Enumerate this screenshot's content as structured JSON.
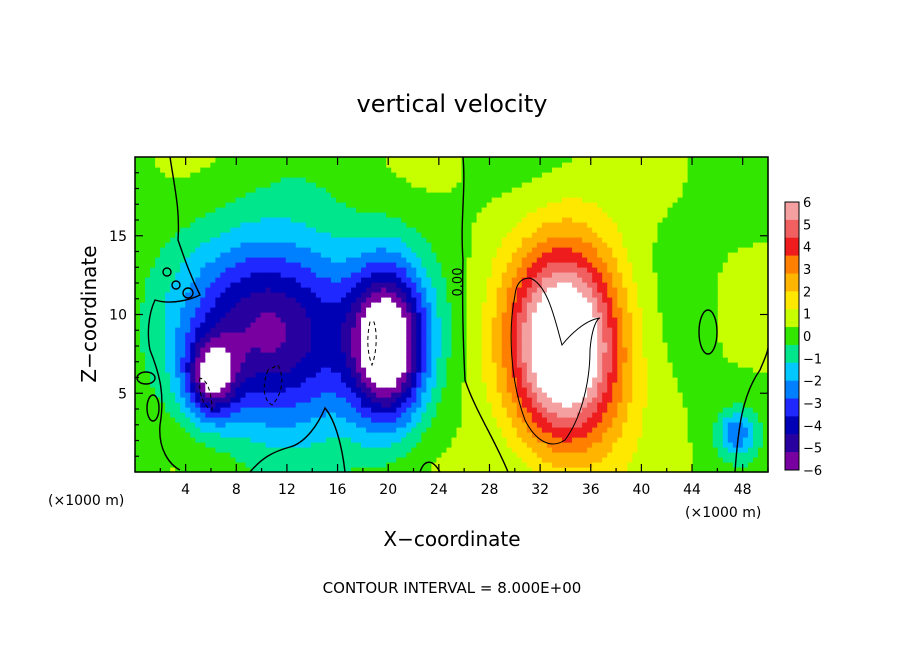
{
  "chart_data": {
    "type": "heatmap",
    "title": "vertical velocity",
    "xlabel": "X−coordinate",
    "ylabel": "Z−coordinate",
    "x_unit": "(×1000 m)",
    "xlim": [
      0,
      50
    ],
    "ylim": [
      0,
      20
    ],
    "x_ticks": [
      4,
      8,
      12,
      16,
      20,
      24,
      28,
      32,
      36,
      40,
      44,
      48
    ],
    "y_ticks": [
      5,
      10,
      15
    ],
    "contour_label": "0.00",
    "contour_interval_text": "CONTOUR INTERVAL = 8.000E+00",
    "colorbar": {
      "labels": [
        "6",
        "5",
        "4",
        "3",
        "2",
        "1",
        "0",
        "−1",
        "−2",
        "−3",
        "−4",
        "−5",
        "−6"
      ],
      "colors": [
        "#f5a0a0",
        "#f06060",
        "#ee1c1c",
        "#ff7f00",
        "#ffb400",
        "#ffe800",
        "#c8ff00",
        "#32e600",
        "#00e68c",
        "#00c8ff",
        "#0080ff",
        "#1e28ff",
        "#0000b4",
        "#2800a0",
        "#7800a0"
      ]
    },
    "features": [
      {
        "kind": "updraft",
        "x": 34,
        "z": 8,
        "sx": 4.5,
        "sz": 6.5,
        "peak": 9
      },
      {
        "kind": "downdraft",
        "x": 11,
        "z": 9,
        "sx": 7,
        "sz": 6,
        "peak": -6.5
      },
      {
        "kind": "downdraft",
        "x": 20,
        "z": 8,
        "sx": 3,
        "sz": 5,
        "peak": -8
      },
      {
        "kind": "downdraft",
        "x": 6,
        "z": 6,
        "sx": 2,
        "sz": 2.5,
        "peak": -5
      },
      {
        "kind": "downdraft",
        "x": 47.5,
        "z": 2.5,
        "sx": 1.5,
        "sz": 1.5,
        "peak": -3
      }
    ]
  }
}
